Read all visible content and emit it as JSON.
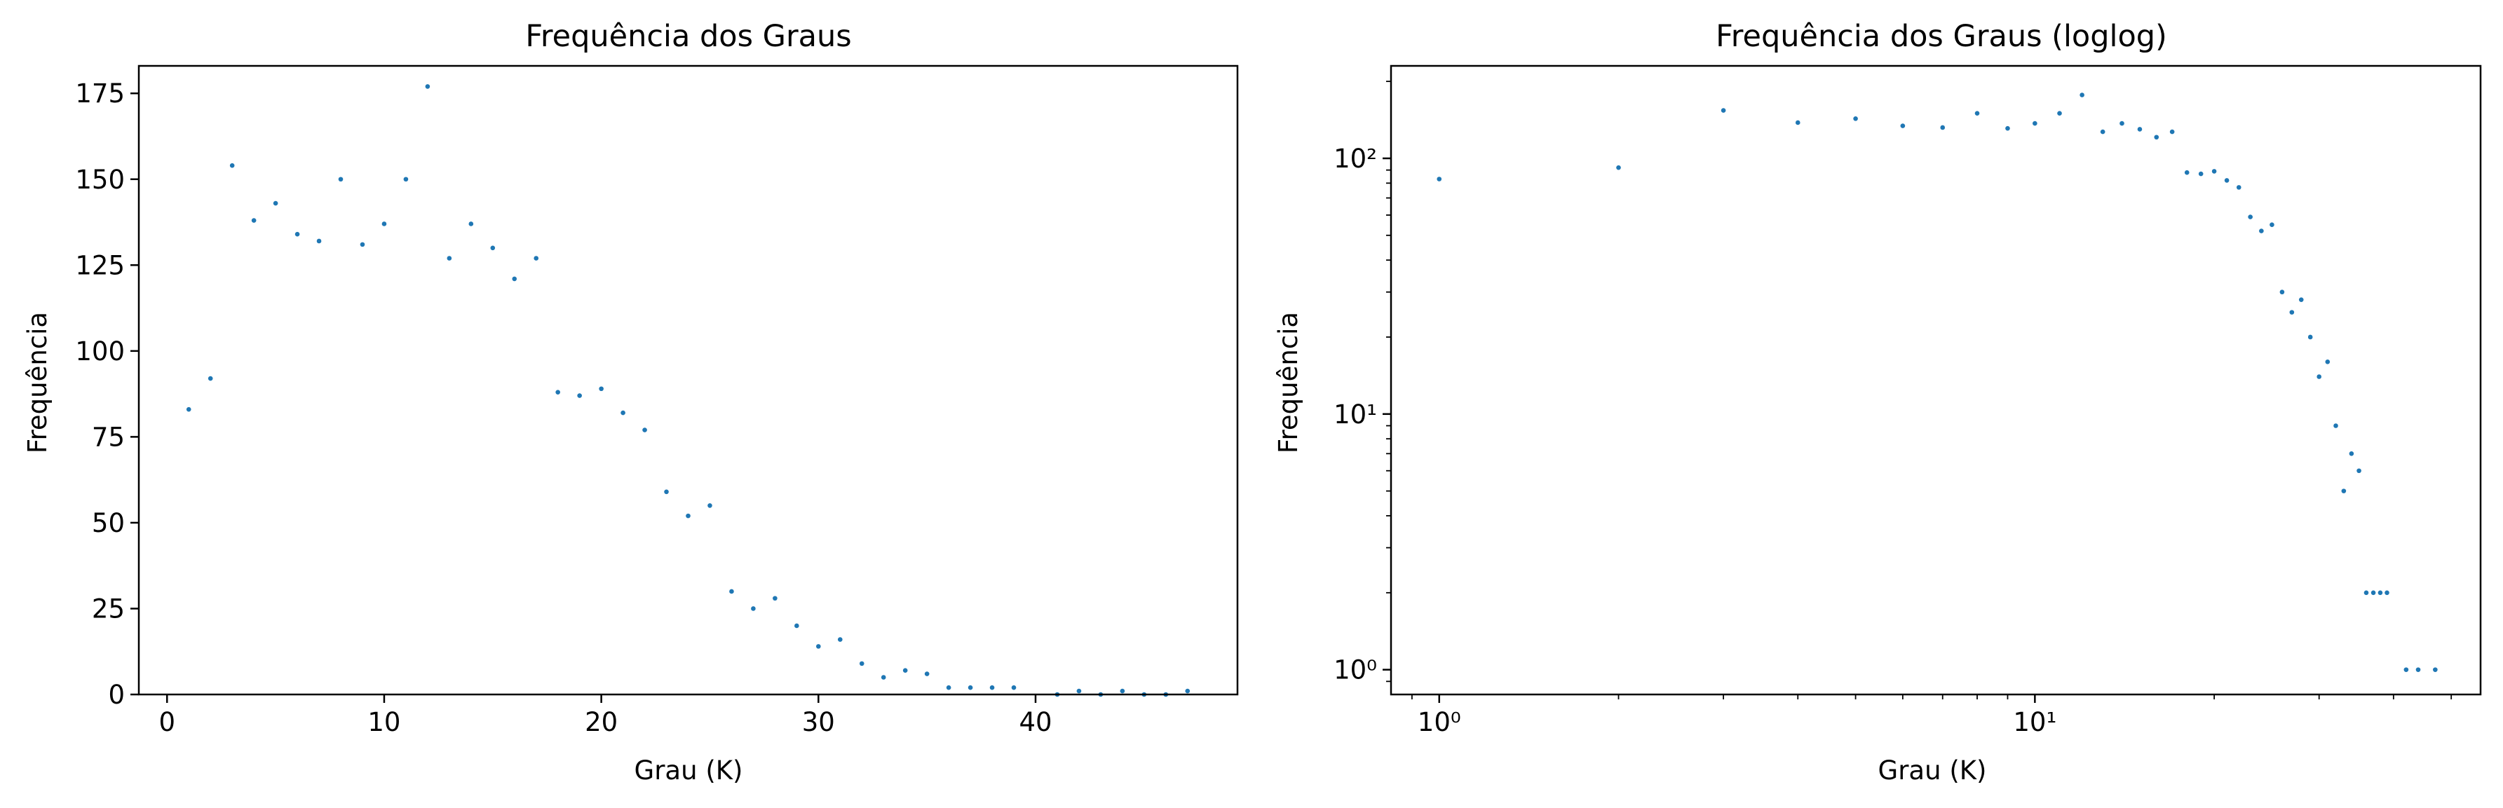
{
  "chart_data": [
    {
      "type": "scatter",
      "title": "Frequência dos Graus",
      "xlabel": "Grau (K)",
      "ylabel": "Frequência",
      "xscale": "linear",
      "yscale": "linear",
      "xlim": [
        -1.3,
        49.3
      ],
      "ylim": [
        0,
        183
      ],
      "xticks": [
        0,
        10,
        20,
        30,
        40
      ],
      "xtick_labels": [
        "0",
        "10",
        "20",
        "30",
        "40"
      ],
      "yticks": [
        0,
        25,
        50,
        75,
        100,
        125,
        150,
        175
      ],
      "ytick_labels": [
        "0",
        "25",
        "50",
        "75",
        "100",
        "125",
        "150",
        "175"
      ],
      "grid": false,
      "color": "#1f77b4",
      "x": [
        1,
        2,
        3,
        4,
        5,
        6,
        7,
        8,
        9,
        10,
        11,
        12,
        13,
        14,
        15,
        16,
        17,
        18,
        19,
        20,
        21,
        22,
        23,
        24,
        25,
        26,
        27,
        28,
        29,
        30,
        31,
        32,
        33,
        34,
        35,
        36,
        37,
        38,
        39,
        41,
        42,
        43,
        44,
        45,
        46,
        47
      ],
      "y": [
        83,
        92,
        154,
        138,
        143,
        134,
        132,
        150,
        131,
        137,
        150,
        177,
        127,
        137,
        130,
        121,
        127,
        88,
        87,
        89,
        82,
        77,
        59,
        52,
        55,
        30,
        25,
        28,
        20,
        14,
        16,
        9,
        5,
        7,
        6,
        2,
        2,
        2,
        2,
        0,
        1,
        0,
        1,
        0,
        0,
        1
      ]
    },
    {
      "type": "scatter",
      "title": "Frequência dos Graus (loglog)",
      "xlabel": "Grau (K)",
      "ylabel": "Frequência",
      "xscale": "log",
      "yscale": "log",
      "xlim": [
        0.83,
        56
      ],
      "ylim": [
        0.8,
        230
      ],
      "xticks": [
        1,
        10
      ],
      "xtick_labels": [
        "10⁰",
        "10¹"
      ],
      "yticks": [
        1,
        10,
        100
      ],
      "ytick_labels": [
        "10⁰",
        "10¹",
        "10²"
      ],
      "grid": false,
      "color": "#1f77b4",
      "x": [
        1,
        2,
        3,
        4,
        5,
        6,
        7,
        8,
        9,
        10,
        11,
        12,
        13,
        14,
        15,
        16,
        17,
        18,
        19,
        20,
        21,
        22,
        23,
        24,
        25,
        26,
        27,
        28,
        29,
        30,
        31,
        32,
        33,
        34,
        35,
        36,
        37,
        38,
        39,
        42,
        44,
        47
      ],
      "y": [
        83,
        92,
        154,
        138,
        143,
        134,
        132,
        150,
        131,
        137,
        150,
        177,
        127,
        137,
        130,
        121,
        127,
        88,
        87,
        89,
        82,
        77,
        59,
        52,
        55,
        30,
        25,
        28,
        20,
        14,
        16,
        9,
        5,
        7,
        6,
        2,
        2,
        2,
        2,
        1,
        1,
        1
      ]
    }
  ]
}
